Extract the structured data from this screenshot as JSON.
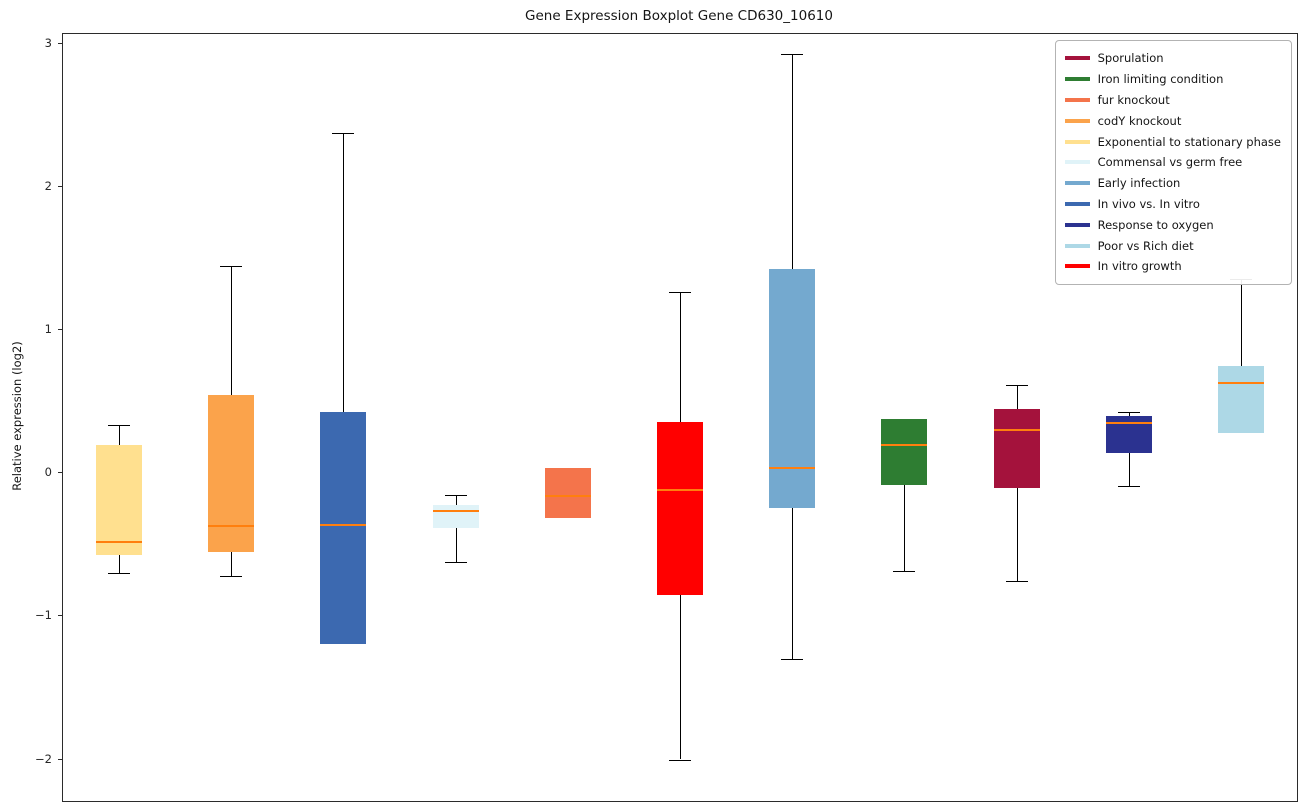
{
  "chart_data": {
    "type": "boxplot",
    "title": "Gene Expression Boxplot Gene CD630_10610",
    "xlabel": "",
    "ylabel": "Relative expression (log2)",
    "ylim": [
      -2.29,
      3.07
    ],
    "yticks": [
      3,
      2,
      1,
      0,
      -1,
      -2
    ],
    "grid": false,
    "legend_position": "upper right",
    "median_color": "#ff7f0e",
    "whisker_color": "#000000",
    "legend": [
      {
        "label": "Sporulation",
        "color": "#a4123c"
      },
      {
        "label": "Iron limiting condition",
        "color": "#2e7d32"
      },
      {
        "label": "fur knockout",
        "color": "#f4744b"
      },
      {
        "label": "codY knockout",
        "color": "#fba34b"
      },
      {
        "label": "Exponential to stationary phase",
        "color": "#ffe08f"
      },
      {
        "label": "Commensal vs germ free",
        "color": "#e0f3f8"
      },
      {
        "label": "Early infection",
        "color": "#74a9cf"
      },
      {
        "label": "In vivo vs. In vitro",
        "color": "#3c69b0"
      },
      {
        "label": "Response to oxygen",
        "color": "#2b3290"
      },
      {
        "label": "Poor vs Rich diet",
        "color": "#add8e6"
      },
      {
        "label": "In vitro growth",
        "color": "#ff0000"
      }
    ],
    "boxes": [
      {
        "name": "Exponential to stationary phase",
        "color": "#ffe08f",
        "whisker_low": -0.7,
        "q1": -0.57,
        "median": -0.48,
        "q3": 0.2,
        "whisker_high": 0.34
      },
      {
        "name": "codY knockout",
        "color": "#fba34b",
        "whisker_low": -0.72,
        "q1": -0.55,
        "median": -0.37,
        "q3": 0.55,
        "whisker_high": 1.45
      },
      {
        "name": "In vivo vs. In vitro",
        "color": "#3c69b0",
        "whisker_low": -1.19,
        "q1": -1.19,
        "median": -0.36,
        "q3": 0.43,
        "whisker_high": 2.38
      },
      {
        "name": "Commensal vs germ free",
        "color": "#e0f3f8",
        "whisker_low": -0.62,
        "q1": -0.38,
        "median": -0.26,
        "q3": -0.22,
        "whisker_high": -0.15
      },
      {
        "name": "fur knockout",
        "color": "#f4744b",
        "whisker_low": -0.31,
        "q1": -0.31,
        "median": -0.16,
        "q3": 0.04,
        "whisker_high": 0.04
      },
      {
        "name": "In vitro growth",
        "color": "#ff0000",
        "whisker_low": -2.0,
        "q1": -0.85,
        "median": -0.12,
        "q3": 0.36,
        "whisker_high": 1.27
      },
      {
        "name": "Early infection",
        "color": "#74a9cf",
        "whisker_low": -1.3,
        "q1": -0.24,
        "median": 0.04,
        "q3": 1.43,
        "whisker_high": 2.93
      },
      {
        "name": "Iron limiting condition",
        "color": "#2e7d32",
        "whisker_low": -0.68,
        "q1": -0.08,
        "median": 0.2,
        "q3": 0.38,
        "whisker_high": 0.38
      },
      {
        "name": "Sporulation",
        "color": "#a4123c",
        "whisker_low": -0.75,
        "q1": -0.1,
        "median": 0.3,
        "q3": 0.45,
        "whisker_high": 0.62
      },
      {
        "name": "Response to oxygen",
        "color": "#2b3290",
        "whisker_low": -0.09,
        "q1": 0.14,
        "median": 0.35,
        "q3": 0.4,
        "whisker_high": 0.43
      },
      {
        "name": "Poor vs Rich diet",
        "color": "#add8e6",
        "whisker_low": 0.28,
        "q1": 0.28,
        "median": 0.63,
        "q3": 0.75,
        "whisker_high": 1.36
      }
    ]
  }
}
